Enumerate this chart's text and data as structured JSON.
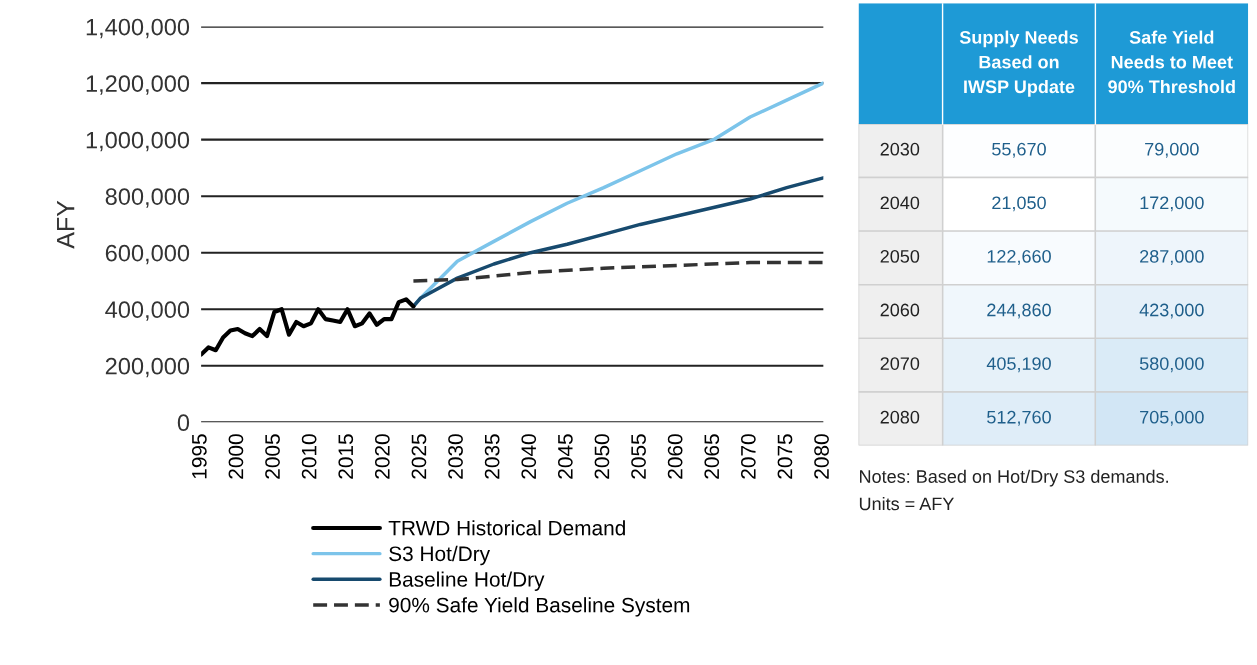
{
  "chart_data": [
    {
      "type": "line",
      "ylabel": "AFY",
      "xlim": [
        1995,
        2080
      ],
      "ylim": [
        0,
        1400000
      ],
      "xticks": [
        1995,
        2000,
        2005,
        2010,
        2015,
        2020,
        2025,
        2030,
        2035,
        2040,
        2045,
        2050,
        2055,
        2060,
        2065,
        2070,
        2075,
        2080
      ],
      "yticks": [
        {
          "value": 0,
          "label": "0"
        },
        {
          "value": 200000,
          "label": "200,000"
        },
        {
          "value": 400000,
          "label": "400,000"
        },
        {
          "value": 600000,
          "label": "600,000"
        },
        {
          "value": 800000,
          "label": "800,000"
        },
        {
          "value": 1000000,
          "label": "1,000,000"
        },
        {
          "value": 1200000,
          "label": "1,200,000"
        },
        {
          "value": 1400000,
          "label": "1,400,000"
        }
      ],
      "grid": "y",
      "legend": "bottom",
      "marker": "none",
      "series": [
        {
          "name": "TRWD Historical Demand",
          "color": "#000000",
          "line_style": "solid",
          "x": [
            1995,
            1996,
            1997,
            1998,
            1999,
            2000,
            2001,
            2002,
            2003,
            2004,
            2005,
            2006,
            2007,
            2008,
            2009,
            2010,
            2011,
            2012,
            2013,
            2014,
            2015,
            2016,
            2017,
            2018,
            2019,
            2020,
            2021,
            2022,
            2023,
            2024
          ],
          "values": [
            240000,
            265000,
            255000,
            300000,
            325000,
            330000,
            315000,
            305000,
            330000,
            305000,
            390000,
            400000,
            310000,
            355000,
            340000,
            350000,
            400000,
            365000,
            360000,
            355000,
            400000,
            340000,
            350000,
            385000,
            345000,
            365000,
            365000,
            425000,
            435000,
            410000
          ]
        },
        {
          "name": "S3 Hot/Dry",
          "color": "#7cc4ea",
          "line_style": "solid",
          "x": [
            2024,
            2025,
            2030,
            2035,
            2040,
            2045,
            2050,
            2055,
            2060,
            2065,
            2070,
            2075,
            2080
          ],
          "values": [
            410000,
            440000,
            570000,
            640000,
            710000,
            775000,
            830000,
            890000,
            950000,
            1000000,
            1080000,
            1140000,
            1200000
          ]
        },
        {
          "name": "Baseline Hot/Dry",
          "color": "#174a6e",
          "line_style": "solid",
          "x": [
            2024,
            2025,
            2030,
            2035,
            2040,
            2045,
            2050,
            2055,
            2060,
            2065,
            2070,
            2075,
            2080
          ],
          "values": [
            410000,
            440000,
            510000,
            560000,
            600000,
            630000,
            665000,
            700000,
            730000,
            760000,
            790000,
            830000,
            865000
          ]
        },
        {
          "name": "90% Safe Yield Baseline System",
          "color": "#333333",
          "line_style": "dashed",
          "x": [
            2024,
            2030,
            2040,
            2050,
            2060,
            2070,
            2080
          ],
          "values": [
            500000,
            505000,
            530000,
            545000,
            555000,
            565000,
            565000
          ]
        }
      ]
    },
    {
      "type": "heatmap",
      "categories": [
        "Supply Needs\nBased on\nIWSP Update",
        "Safe Yield\nNeeds to Meet\n90% Threshold"
      ],
      "y_categories": [
        "2030",
        "2040",
        "2050",
        "2060",
        "2070",
        "2080"
      ],
      "cells": [
        [
          55670,
          79000
        ],
        [
          21050,
          172000
        ],
        [
          122660,
          287000
        ],
        [
          244860,
          423000
        ],
        [
          405190,
          580000
        ],
        [
          512760,
          705000
        ]
      ],
      "cell_labels": [
        [
          "55,670",
          "79,000"
        ],
        [
          "21,050",
          "172,000"
        ],
        [
          "122,660",
          "287,000"
        ],
        [
          "244,860",
          "423,000"
        ],
        [
          "405,190",
          "580,000"
        ],
        [
          "512,760",
          "705,000"
        ]
      ],
      "annotations": [
        "Notes: Based on Hot/Dry S3 demands.\nUnits = AFY"
      ]
    }
  ]
}
